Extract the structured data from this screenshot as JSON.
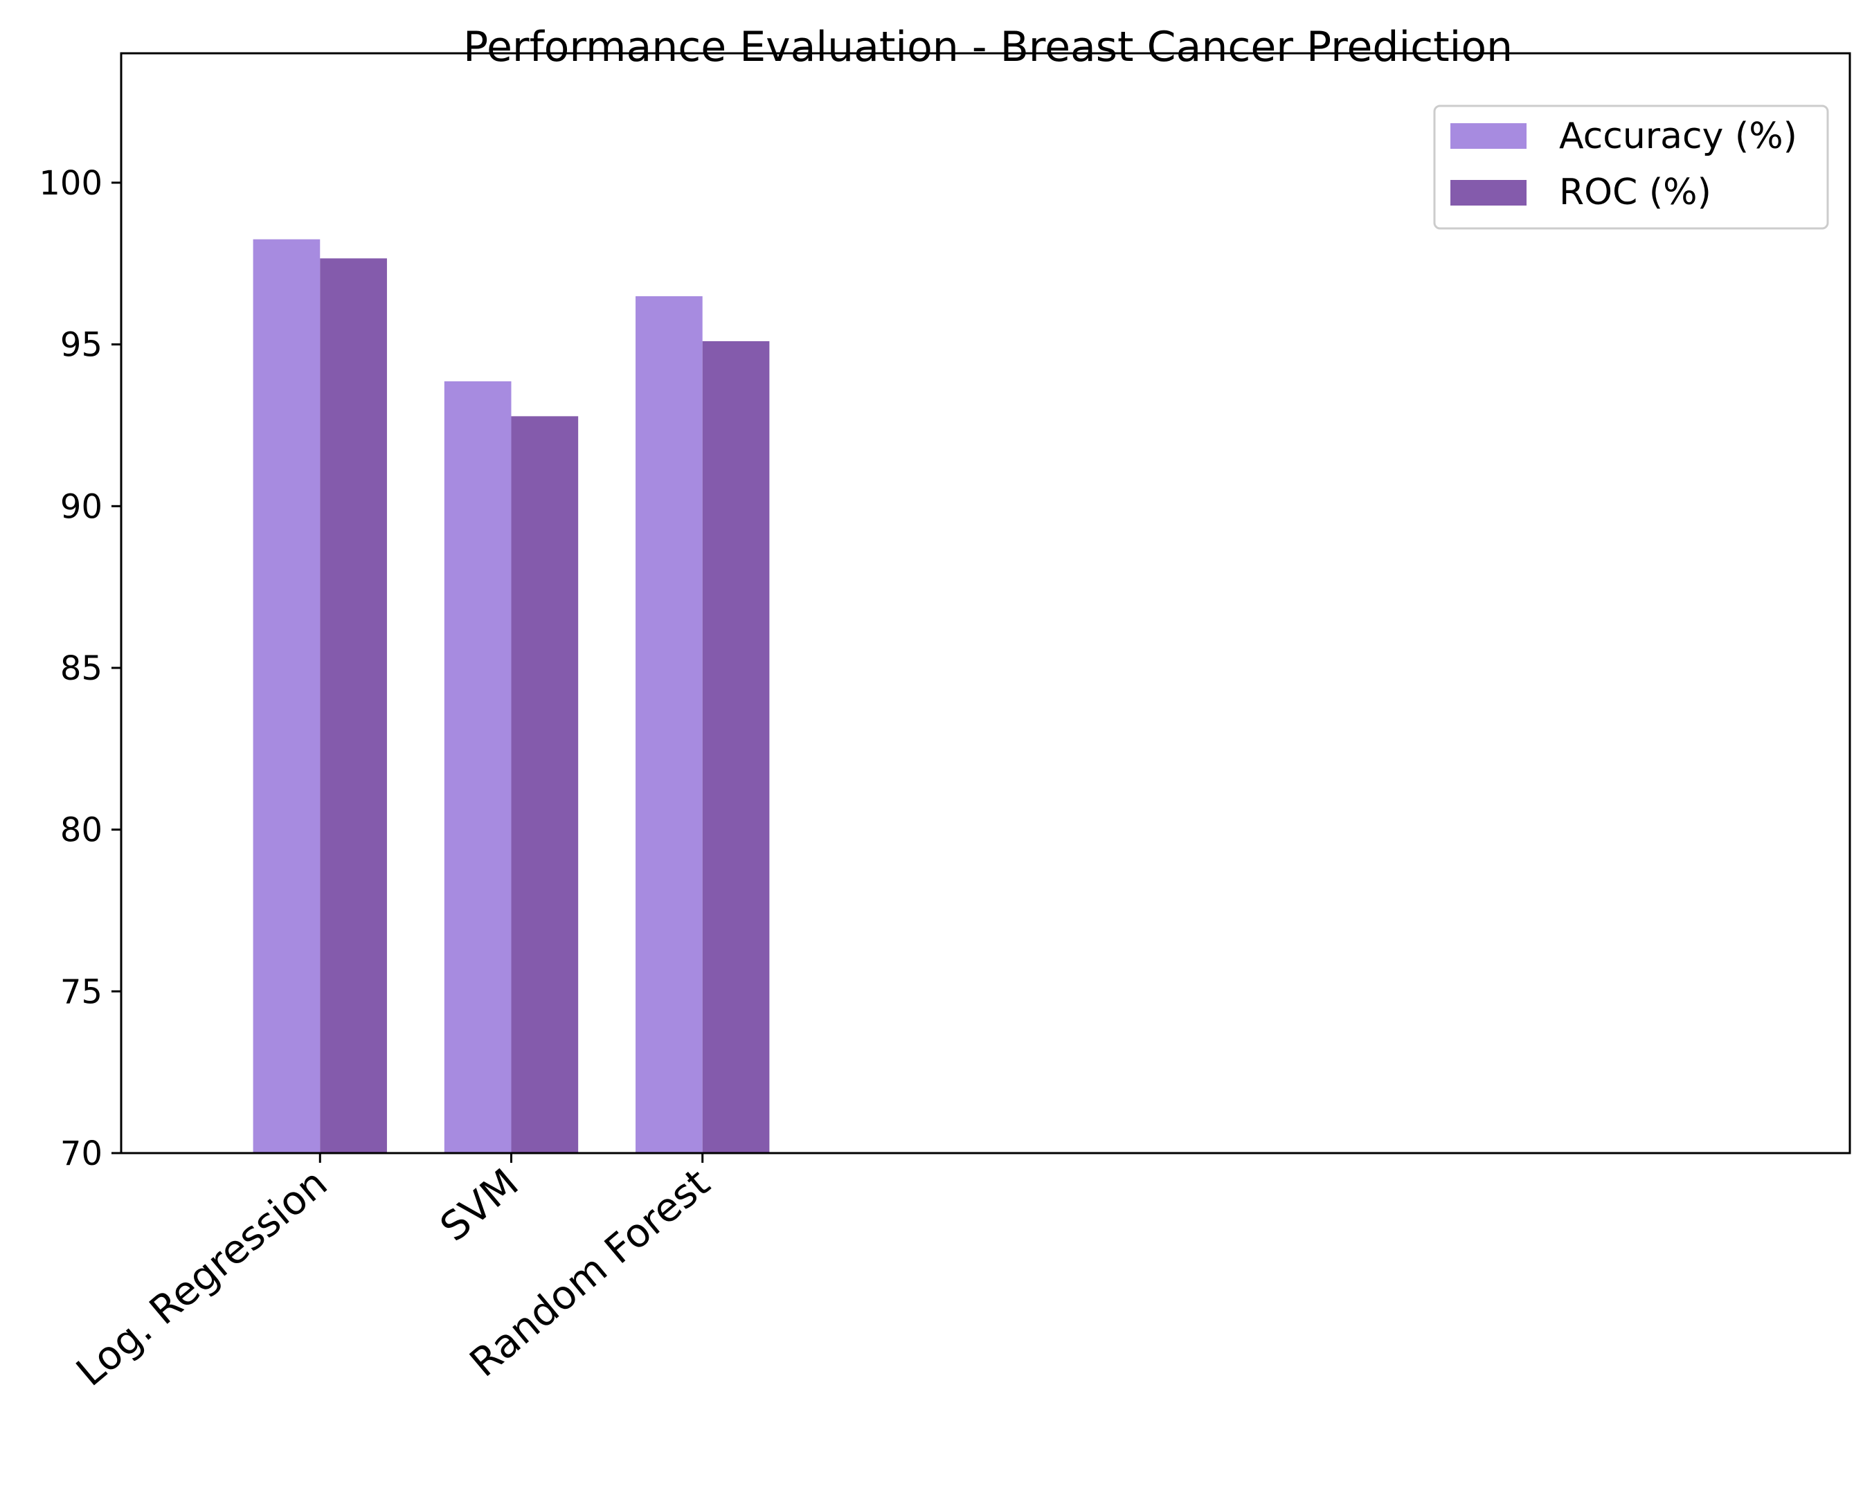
{
  "chart_data": {
    "type": "bar",
    "title": "Performance Evaluation - Breast Cancer Prediction",
    "xlabel": "",
    "ylabel": "",
    "categories": [
      "Log. Regression",
      "SVM",
      "Random Forest"
    ],
    "series": [
      {
        "name": "Accuracy (%)",
        "color": "#a78be0",
        "values": [
          98.25,
          93.86,
          96.49
        ]
      },
      {
        "name": "ROC (%)",
        "color": "#845bac",
        "values": [
          97.66,
          92.78,
          95.1
        ]
      }
    ],
    "ylim": [
      70,
      104
    ],
    "yticks": [
      70,
      75,
      80,
      85,
      90,
      95,
      100
    ],
    "grid": false,
    "legend_position": "top-right"
  }
}
